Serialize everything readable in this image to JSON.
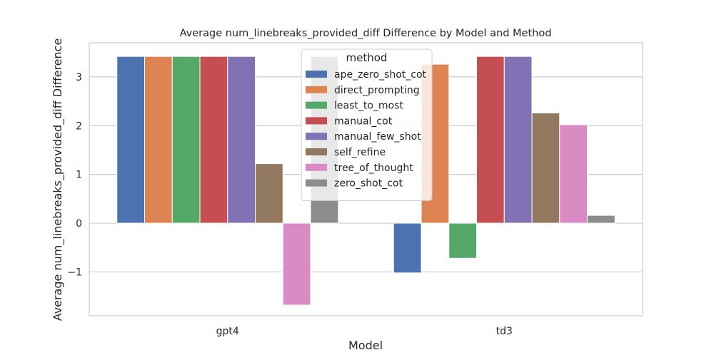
{
  "chart_data": {
    "type": "bar",
    "title": "Average num_linebreaks_provided_diff Difference by Model and Method",
    "xlabel": "Model",
    "ylabel": "Average num_linebreaks_provided_diff Difference",
    "categories": [
      "gpt4",
      "td3"
    ],
    "ylim": [
      -1.9,
      3.7
    ],
    "yticks": [
      -1,
      0,
      1,
      2,
      3
    ],
    "ytick_labels": [
      "−1",
      "0",
      "1",
      "2",
      "3"
    ],
    "grid": true,
    "legend": {
      "title": "method",
      "position": "top-center"
    },
    "series": [
      {
        "name": "ape_zero_shot_cot",
        "color": "#4c72b0",
        "values": [
          3.42,
          -1.02
        ]
      },
      {
        "name": "direct_prompting",
        "color": "#dd8452",
        "values": [
          3.42,
          3.26
        ]
      },
      {
        "name": "least_to_most",
        "color": "#55a868",
        "values": [
          3.42,
          -0.72
        ]
      },
      {
        "name": "manual_cot",
        "color": "#c44e52",
        "values": [
          3.42,
          3.42
        ]
      },
      {
        "name": "manual_few_shot",
        "color": "#8172b3",
        "values": [
          3.42,
          3.42
        ]
      },
      {
        "name": "self_refine",
        "color": "#937860",
        "values": [
          1.22,
          2.26
        ]
      },
      {
        "name": "tree_of_thought",
        "color": "#da8bc3",
        "values": [
          -1.68,
          2.02
        ]
      },
      {
        "name": "zero_shot_cot",
        "color": "#8c8c8c",
        "values": [
          3.42,
          0.16
        ]
      }
    ]
  }
}
